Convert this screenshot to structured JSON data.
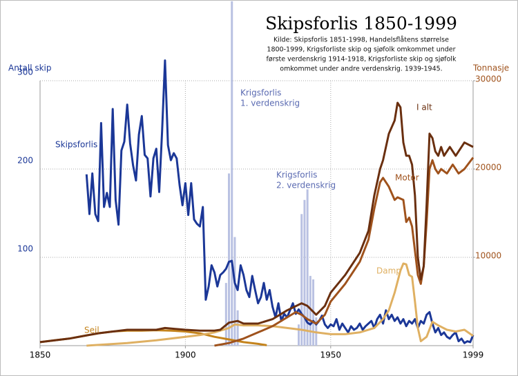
{
  "chart_data": {
    "type": "line",
    "title": "Skipsforlis 1850-1999",
    "subtitle": [
      "Kilde: Skipsforlis 1851-1998, Handelsflåtens størrelse",
      "1800-1999, Krigsforliste skip og sjøfolk omkommet under",
      "første verdenskrig 1914-1918, Krigsforliste skip og sjøfolk",
      "omkommet under andre verdenskrig. 1939-1945."
    ],
    "y_label": "Antall skip",
    "y2_label": "Tonnasje",
    "xlim": [
      1850,
      1999
    ],
    "xticks": [
      1850,
      1900,
      1950,
      1999
    ],
    "ylim": [
      0,
      300
    ],
    "yticks": [
      100,
      200,
      300
    ],
    "y2lim": [
      0,
      30000
    ],
    "y2ticks": [
      10000,
      20000,
      30000
    ],
    "grid": true,
    "bars": {
      "color": "#b9c1e2",
      "x": [
        1914,
        1915,
        1916,
        1917,
        1918,
        1939,
        1940,
        1941,
        1942,
        1943,
        1944,
        1945
      ],
      "values": [
        71,
        195,
        390,
        123,
        40,
        24,
        149,
        165,
        177,
        79,
        75,
        32
      ]
    },
    "annotations": [
      {
        "lines": [
          "Krigsforlis",
          "1. verdenskrig"
        ],
        "color": "#5b6bb2"
      },
      {
        "lines": [
          "Krigsforlis",
          "2. verdenskrig"
        ],
        "color": "#5b6bb2"
      }
    ],
    "series": [
      {
        "name": "Skipsforlis",
        "color": "#1b3797",
        "axis": "y",
        "x": [
          1866,
          1867,
          1868,
          1869,
          1870,
          1871,
          1872,
          1873,
          1874,
          1875,
          1876,
          1877,
          1878,
          1879,
          1880,
          1881,
          1882,
          1883,
          1884,
          1885,
          1886,
          1887,
          1888,
          1889,
          1890,
          1891,
          1892,
          1893,
          1894,
          1895,
          1896,
          1897,
          1898,
          1899,
          1900,
          1901,
          1902,
          1903,
          1904,
          1905,
          1906,
          1907,
          1908,
          1909,
          1910,
          1911,
          1912,
          1913,
          1914,
          1915,
          1916,
          1917,
          1918,
          1919,
          1920,
          1921,
          1922,
          1923,
          1924,
          1925,
          1926,
          1927,
          1928,
          1929,
          1930,
          1931,
          1932,
          1933,
          1934,
          1935,
          1936,
          1937,
          1938,
          1939,
          1940,
          1941,
          1942,
          1943,
          1944,
          1945,
          1946,
          1947,
          1948,
          1949,
          1950,
          1951,
          1952,
          1953,
          1954,
          1955,
          1956,
          1957,
          1958,
          1959,
          1960,
          1961,
          1962,
          1963,
          1964,
          1965,
          1966,
          1967,
          1968,
          1969,
          1970,
          1971,
          1972,
          1973,
          1974,
          1975,
          1976,
          1977,
          1978,
          1979,
          1980,
          1981,
          1982,
          1983,
          1984,
          1985,
          1986,
          1987,
          1988,
          1989,
          1990,
          1991,
          1992,
          1993,
          1994,
          1995,
          1996,
          1997,
          1998,
          1999
        ],
        "values": [
          194,
          149,
          195,
          149,
          141,
          252,
          157,
          173,
          157,
          268,
          165,
          137,
          221,
          231,
          273,
          229,
          204,
          187,
          239,
          260,
          216,
          212,
          169,
          212,
          223,
          174,
          243,
          323,
          227,
          210,
          218,
          212,
          182,
          159,
          184,
          148,
          184,
          143,
          138,
          135,
          157,
          52,
          67,
          91,
          83,
          67,
          80,
          83,
          87,
          95,
          96,
          71,
          63,
          91,
          80,
          63,
          55,
          79,
          63,
          48,
          55,
          71,
          52,
          63,
          44,
          32,
          48,
          28,
          36,
          32,
          40,
          48,
          36,
          41,
          36,
          32,
          26,
          24,
          28,
          24,
          28,
          34,
          24,
          20,
          24,
          22,
          30,
          18,
          25,
          20,
          15,
          22,
          18,
          20,
          25,
          18,
          22,
          25,
          28,
          20,
          30,
          35,
          25,
          40,
          30,
          35,
          28,
          32,
          25,
          30,
          22,
          28,
          25,
          30,
          20,
          28,
          25,
          35,
          38,
          25,
          15,
          20,
          12,
          15,
          10,
          8,
          12,
          15,
          5,
          8,
          3,
          5,
          4,
          12
        ]
      },
      {
        "name": "Seil",
        "color": "#c4831c",
        "axis": "y2",
        "x": [
          1850,
          1855,
          1860,
          1865,
          1870,
          1875,
          1880,
          1885,
          1890,
          1895,
          1900,
          1905,
          1910,
          1915,
          1920,
          1925,
          1928
        ],
        "values": [
          400,
          600,
          800,
          1100,
          1400,
          1600,
          1700,
          1700,
          1750,
          1700,
          1600,
          1400,
          1000,
          700,
          400,
          200,
          50
        ]
      },
      {
        "name": "Damp",
        "color": "#dfb062",
        "axis": "y2",
        "x": [
          1866,
          1880,
          1890,
          1900,
          1905,
          1910,
          1915,
          1917,
          1920,
          1925,
          1930,
          1935,
          1940,
          1945,
          1950,
          1955,
          1960,
          1965,
          1968,
          1970,
          1972,
          1974,
          1975,
          1976,
          1977,
          1978,
          1979,
          1980,
          1981,
          1983,
          1985,
          1987,
          1990,
          1993,
          1996,
          1999
        ],
        "values": [
          0,
          300,
          600,
          1000,
          1200,
          1500,
          2000,
          2400,
          2300,
          2300,
          2200,
          2000,
          1800,
          1500,
          1300,
          1300,
          1500,
          2000,
          3000,
          4000,
          6000,
          8500,
          9300,
          9200,
          8000,
          7800,
          5000,
          2000,
          500,
          1000,
          2700,
          2300,
          1800,
          1600,
          1800,
          1100
        ]
      },
      {
        "name": "Motor",
        "color": "#9f521c",
        "axis": "y2",
        "x": [
          1910,
          1915,
          1920,
          1925,
          1930,
          1935,
          1938,
          1940,
          1942,
          1945,
          1948,
          1950,
          1955,
          1960,
          1963,
          1965,
          1967,
          1968,
          1970,
          1972,
          1973,
          1975,
          1976,
          1977,
          1978,
          1980,
          1981,
          1982,
          1983,
          1984,
          1985,
          1986,
          1987,
          1988,
          1990,
          1992,
          1994,
          1996,
          1999
        ],
        "values": [
          0,
          300,
          800,
          1500,
          2200,
          3200,
          3800,
          3500,
          3000,
          2500,
          3500,
          5000,
          7000,
          9500,
          12000,
          15500,
          18500,
          19000,
          18000,
          16500,
          16800,
          16500,
          14000,
          14500,
          13500,
          8000,
          7000,
          9000,
          14000,
          20000,
          21000,
          20000,
          19500,
          20000,
          19500,
          20500,
          19500,
          20000,
          21300
        ]
      },
      {
        "name": "I alt",
        "color": "#6a2f0f",
        "axis": "y2",
        "x": [
          1850,
          1860,
          1870,
          1880,
          1890,
          1893,
          1900,
          1905,
          1910,
          1912,
          1915,
          1918,
          1920,
          1925,
          1930,
          1935,
          1940,
          1942,
          1945,
          1948,
          1950,
          1955,
          1960,
          1963,
          1965,
          1967,
          1968,
          1970,
          1972,
          1973,
          1974,
          1975,
          1976,
          1977,
          1978,
          1979,
          1980,
          1981,
          1982,
          1983,
          1984,
          1985,
          1986,
          1987,
          1988,
          1989,
          1991,
          1993,
          1996,
          1999
        ],
        "values": [
          400,
          800,
          1400,
          1800,
          1800,
          2000,
          1800,
          1700,
          1700,
          1800,
          2600,
          2800,
          2500,
          2500,
          3000,
          4000,
          4800,
          4500,
          3500,
          4500,
          6000,
          8000,
          10500,
          13000,
          17000,
          20000,
          21000,
          24000,
          25500,
          27500,
          27000,
          23000,
          21500,
          21500,
          20500,
          17000,
          10000,
          7500,
          9000,
          16000,
          24000,
          23500,
          22000,
          21500,
          22500,
          21500,
          22500,
          21500,
          23000,
          22500
        ]
      }
    ]
  }
}
